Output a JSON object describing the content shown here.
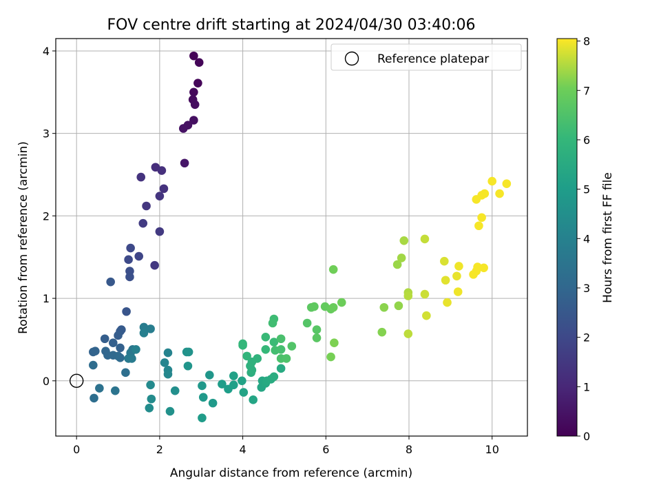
{
  "chart_data": {
    "type": "scatter",
    "title": "FOV centre drift starting at 2024/04/30 03:40:06",
    "xlabel": "Angular distance from reference (arcmin)",
    "ylabel": "Rotation from reference (arcmin)",
    "xlim": [
      -0.5,
      10.85
    ],
    "ylim": [
      -0.67,
      4.15
    ],
    "xticks": [
      0,
      2,
      4,
      6,
      8,
      10
    ],
    "yticks": [
      0,
      1,
      2,
      3,
      4
    ],
    "grid": true,
    "legend": {
      "position": "top-right",
      "entries": [
        "Reference platepar"
      ]
    },
    "colorbar": {
      "label": "Hours from first FF file",
      "range": [
        0,
        8.05
      ],
      "ticks": [
        0,
        1,
        2,
        3,
        4,
        5,
        6,
        7,
        8
      ],
      "colormap": "viridis"
    },
    "reference_point": {
      "x": 0,
      "y": 0,
      "label": "Reference platepar"
    },
    "points": [
      {
        "x": 2.82,
        "y": 3.94,
        "h": 0.05
      },
      {
        "x": 2.95,
        "y": 3.86,
        "h": 0.1
      },
      {
        "x": 2.92,
        "y": 3.61,
        "h": 0.15
      },
      {
        "x": 2.82,
        "y": 3.5,
        "h": 0.2
      },
      {
        "x": 2.8,
        "y": 3.41,
        "h": 0.25
      },
      {
        "x": 2.85,
        "y": 3.35,
        "h": 0.3
      },
      {
        "x": 2.82,
        "y": 3.16,
        "h": 0.35
      },
      {
        "x": 2.68,
        "y": 3.1,
        "h": 0.4
      },
      {
        "x": 2.57,
        "y": 3.06,
        "h": 0.45
      },
      {
        "x": 2.6,
        "y": 2.64,
        "h": 0.55
      },
      {
        "x": 1.9,
        "y": 2.59,
        "h": 1.2
      },
      {
        "x": 2.05,
        "y": 2.55,
        "h": 1.25
      },
      {
        "x": 1.55,
        "y": 2.47,
        "h": 1.35
      },
      {
        "x": 2.1,
        "y": 2.33,
        "h": 1.3
      },
      {
        "x": 2.0,
        "y": 2.24,
        "h": 1.4
      },
      {
        "x": 1.68,
        "y": 2.12,
        "h": 1.45
      },
      {
        "x": 1.6,
        "y": 1.91,
        "h": 1.6
      },
      {
        "x": 2.0,
        "y": 1.81,
        "h": 1.55
      },
      {
        "x": 1.88,
        "y": 1.4,
        "h": 1.5
      },
      {
        "x": 1.3,
        "y": 1.61,
        "h": 2.0
      },
      {
        "x": 1.5,
        "y": 1.51,
        "h": 1.9
      },
      {
        "x": 1.25,
        "y": 1.47,
        "h": 2.05
      },
      {
        "x": 1.28,
        "y": 1.33,
        "h": 2.2
      },
      {
        "x": 1.28,
        "y": 1.26,
        "h": 2.25
      },
      {
        "x": 0.82,
        "y": 1.2,
        "h": 2.5
      },
      {
        "x": 1.2,
        "y": 0.84,
        "h": 2.4
      },
      {
        "x": 1.08,
        "y": 0.62,
        "h": 2.55
      },
      {
        "x": 1.05,
        "y": 0.6,
        "h": 2.6
      },
      {
        "x": 1.0,
        "y": 0.55,
        "h": 2.65
      },
      {
        "x": 0.68,
        "y": 0.51,
        "h": 2.7
      },
      {
        "x": 0.88,
        "y": 0.46,
        "h": 2.75
      },
      {
        "x": 1.05,
        "y": 0.4,
        "h": 2.8
      },
      {
        "x": 0.4,
        "y": 0.35,
        "h": 2.85
      },
      {
        "x": 0.45,
        "y": 0.36,
        "h": 2.9
      },
      {
        "x": 0.7,
        "y": 0.36,
        "h": 2.95
      },
      {
        "x": 0.75,
        "y": 0.31,
        "h": 3.0
      },
      {
        "x": 0.88,
        "y": 0.31,
        "h": 3.05
      },
      {
        "x": 1.0,
        "y": 0.3,
        "h": 3.1
      },
      {
        "x": 1.05,
        "y": 0.28,
        "h": 3.15
      },
      {
        "x": 0.4,
        "y": 0.19,
        "h": 3.2
      },
      {
        "x": 1.18,
        "y": 0.1,
        "h": 3.3
      },
      {
        "x": 0.55,
        "y": -0.09,
        "h": 3.4
      },
      {
        "x": 0.93,
        "y": -0.12,
        "h": 3.5
      },
      {
        "x": 0.42,
        "y": -0.21,
        "h": 3.25
      },
      {
        "x": 1.35,
        "y": 0.38,
        "h": 3.6
      },
      {
        "x": 1.3,
        "y": 0.34,
        "h": 3.65
      },
      {
        "x": 1.25,
        "y": 0.27,
        "h": 3.7
      },
      {
        "x": 1.33,
        "y": 0.27,
        "h": 3.75
      },
      {
        "x": 1.62,
        "y": 0.65,
        "h": 3.8
      },
      {
        "x": 1.78,
        "y": 0.63,
        "h": 3.85
      },
      {
        "x": 1.62,
        "y": 0.58,
        "h": 3.9
      },
      {
        "x": 1.43,
        "y": 0.38,
        "h": 3.95
      },
      {
        "x": 1.78,
        "y": -0.05,
        "h": 4.3
      },
      {
        "x": 1.8,
        "y": -0.22,
        "h": 4.35
      },
      {
        "x": 1.75,
        "y": -0.33,
        "h": 4.4
      },
      {
        "x": 2.2,
        "y": 0.34,
        "h": 4.05
      },
      {
        "x": 2.12,
        "y": 0.22,
        "h": 4.1
      },
      {
        "x": 2.2,
        "y": 0.13,
        "h": 4.15
      },
      {
        "x": 2.2,
        "y": 0.08,
        "h": 4.2
      },
      {
        "x": 2.37,
        "y": -0.12,
        "h": 4.5
      },
      {
        "x": 2.25,
        "y": -0.37,
        "h": 4.55
      },
      {
        "x": 2.65,
        "y": 0.35,
        "h": 4.6
      },
      {
        "x": 2.7,
        "y": 0.35,
        "h": 4.65
      },
      {
        "x": 2.68,
        "y": 0.18,
        "h": 4.7
      },
      {
        "x": 3.2,
        "y": 0.07,
        "h": 4.75
      },
      {
        "x": 3.02,
        "y": -0.06,
        "h": 4.8
      },
      {
        "x": 3.05,
        "y": -0.2,
        "h": 4.85
      },
      {
        "x": 3.28,
        "y": -0.27,
        "h": 4.9
      },
      {
        "x": 3.02,
        "y": -0.45,
        "h": 4.95
      },
      {
        "x": 3.5,
        "y": -0.04,
        "h": 5.0
      },
      {
        "x": 3.65,
        "y": -0.1,
        "h": 5.05
      },
      {
        "x": 3.78,
        "y": -0.05,
        "h": 5.1
      },
      {
        "x": 3.78,
        "y": 0.06,
        "h": 5.15
      },
      {
        "x": 3.98,
        "y": 0.0,
        "h": 5.2
      },
      {
        "x": 4.02,
        "y": -0.14,
        "h": 5.25
      },
      {
        "x": 4.25,
        "y": -0.23,
        "h": 5.3
      },
      {
        "x": 4.45,
        "y": -0.08,
        "h": 5.35
      },
      {
        "x": 4.47,
        "y": 0.0,
        "h": 5.4
      },
      {
        "x": 4.55,
        "y": -0.03,
        "h": 5.45
      },
      {
        "x": 4.58,
        "y": 0.0,
        "h": 5.5
      },
      {
        "x": 4.68,
        "y": 0.02,
        "h": 5.55
      },
      {
        "x": 4.75,
        "y": 0.05,
        "h": 5.6
      },
      {
        "x": 4.2,
        "y": 0.1,
        "h": 5.65
      },
      {
        "x": 4.22,
        "y": 0.13,
        "h": 5.7
      },
      {
        "x": 4.18,
        "y": 0.18,
        "h": 5.75
      },
      {
        "x": 4.22,
        "y": 0.23,
        "h": 5.8
      },
      {
        "x": 4.35,
        "y": 0.27,
        "h": 5.85
      },
      {
        "x": 4.1,
        "y": 0.3,
        "h": 5.9
      },
      {
        "x": 4.0,
        "y": 0.43,
        "h": 5.95
      },
      {
        "x": 4.0,
        "y": 0.45,
        "h": 6.0
      },
      {
        "x": 4.55,
        "y": 0.38,
        "h": 6.05
      },
      {
        "x": 4.55,
        "y": 0.53,
        "h": 6.1
      },
      {
        "x": 4.75,
        "y": 0.47,
        "h": 6.15
      },
      {
        "x": 4.75,
        "y": 0.75,
        "h": 6.2
      },
      {
        "x": 4.72,
        "y": 0.7,
        "h": 6.25
      },
      {
        "x": 4.78,
        "y": 0.37,
        "h": 6.3
      },
      {
        "x": 4.92,
        "y": 0.38,
        "h": 6.35
      },
      {
        "x": 4.92,
        "y": 0.51,
        "h": 6.4
      },
      {
        "x": 4.92,
        "y": 0.27,
        "h": 6.45
      },
      {
        "x": 5.05,
        "y": 0.27,
        "h": 6.5
      },
      {
        "x": 4.92,
        "y": 0.15,
        "h": 5.5
      },
      {
        "x": 5.18,
        "y": 0.42,
        "h": 6.55
      },
      {
        "x": 5.55,
        "y": 0.7,
        "h": 6.6
      },
      {
        "x": 5.78,
        "y": 0.62,
        "h": 6.65
      },
      {
        "x": 5.78,
        "y": 0.52,
        "h": 6.7
      },
      {
        "x": 5.65,
        "y": 0.89,
        "h": 6.75
      },
      {
        "x": 5.72,
        "y": 0.9,
        "h": 6.8
      },
      {
        "x": 5.98,
        "y": 0.9,
        "h": 6.85
      },
      {
        "x": 6.12,
        "y": 0.87,
        "h": 6.9
      },
      {
        "x": 6.18,
        "y": 0.89,
        "h": 6.95
      },
      {
        "x": 6.38,
        "y": 0.95,
        "h": 7.0
      },
      {
        "x": 6.18,
        "y": 1.35,
        "h": 7.05
      },
      {
        "x": 6.12,
        "y": 0.29,
        "h": 7.1
      },
      {
        "x": 6.2,
        "y": 0.46,
        "h": 7.15
      },
      {
        "x": 7.35,
        "y": 0.59,
        "h": 7.2
      },
      {
        "x": 7.4,
        "y": 0.89,
        "h": 7.25
      },
      {
        "x": 7.75,
        "y": 0.91,
        "h": 7.3
      },
      {
        "x": 7.72,
        "y": 1.41,
        "h": 7.35
      },
      {
        "x": 7.82,
        "y": 1.49,
        "h": 7.4
      },
      {
        "x": 7.88,
        "y": 1.7,
        "h": 7.45
      },
      {
        "x": 7.98,
        "y": 1.07,
        "h": 7.5
      },
      {
        "x": 7.98,
        "y": 1.03,
        "h": 7.55
      },
      {
        "x": 7.98,
        "y": 0.57,
        "h": 7.6
      },
      {
        "x": 8.38,
        "y": 1.72,
        "h": 7.65
      },
      {
        "x": 8.38,
        "y": 1.05,
        "h": 7.7
      },
      {
        "x": 8.42,
        "y": 0.79,
        "h": 7.75
      },
      {
        "x": 8.85,
        "y": 1.45,
        "h": 7.8
      },
      {
        "x": 8.88,
        "y": 1.22,
        "h": 7.85
      },
      {
        "x": 8.92,
        "y": 0.95,
        "h": 7.9
      },
      {
        "x": 9.15,
        "y": 1.27,
        "h": 7.9
      },
      {
        "x": 9.2,
        "y": 1.39,
        "h": 7.95
      },
      {
        "x": 9.18,
        "y": 1.08,
        "h": 7.95
      },
      {
        "x": 9.55,
        "y": 1.29,
        "h": 8.0
      },
      {
        "x": 9.62,
        "y": 1.33,
        "h": 8.0
      },
      {
        "x": 9.65,
        "y": 1.38,
        "h": 8.0
      },
      {
        "x": 9.8,
        "y": 1.37,
        "h": 8.0
      },
      {
        "x": 9.68,
        "y": 1.88,
        "h": 8.0
      },
      {
        "x": 9.75,
        "y": 1.98,
        "h": 8.0
      },
      {
        "x": 9.62,
        "y": 2.2,
        "h": 8.0
      },
      {
        "x": 9.75,
        "y": 2.25,
        "h": 8.0
      },
      {
        "x": 9.82,
        "y": 2.27,
        "h": 8.0
      },
      {
        "x": 10.0,
        "y": 2.42,
        "h": 8.0
      },
      {
        "x": 10.18,
        "y": 2.27,
        "h": 8.0
      },
      {
        "x": 10.35,
        "y": 2.39,
        "h": 8.0
      }
    ]
  }
}
